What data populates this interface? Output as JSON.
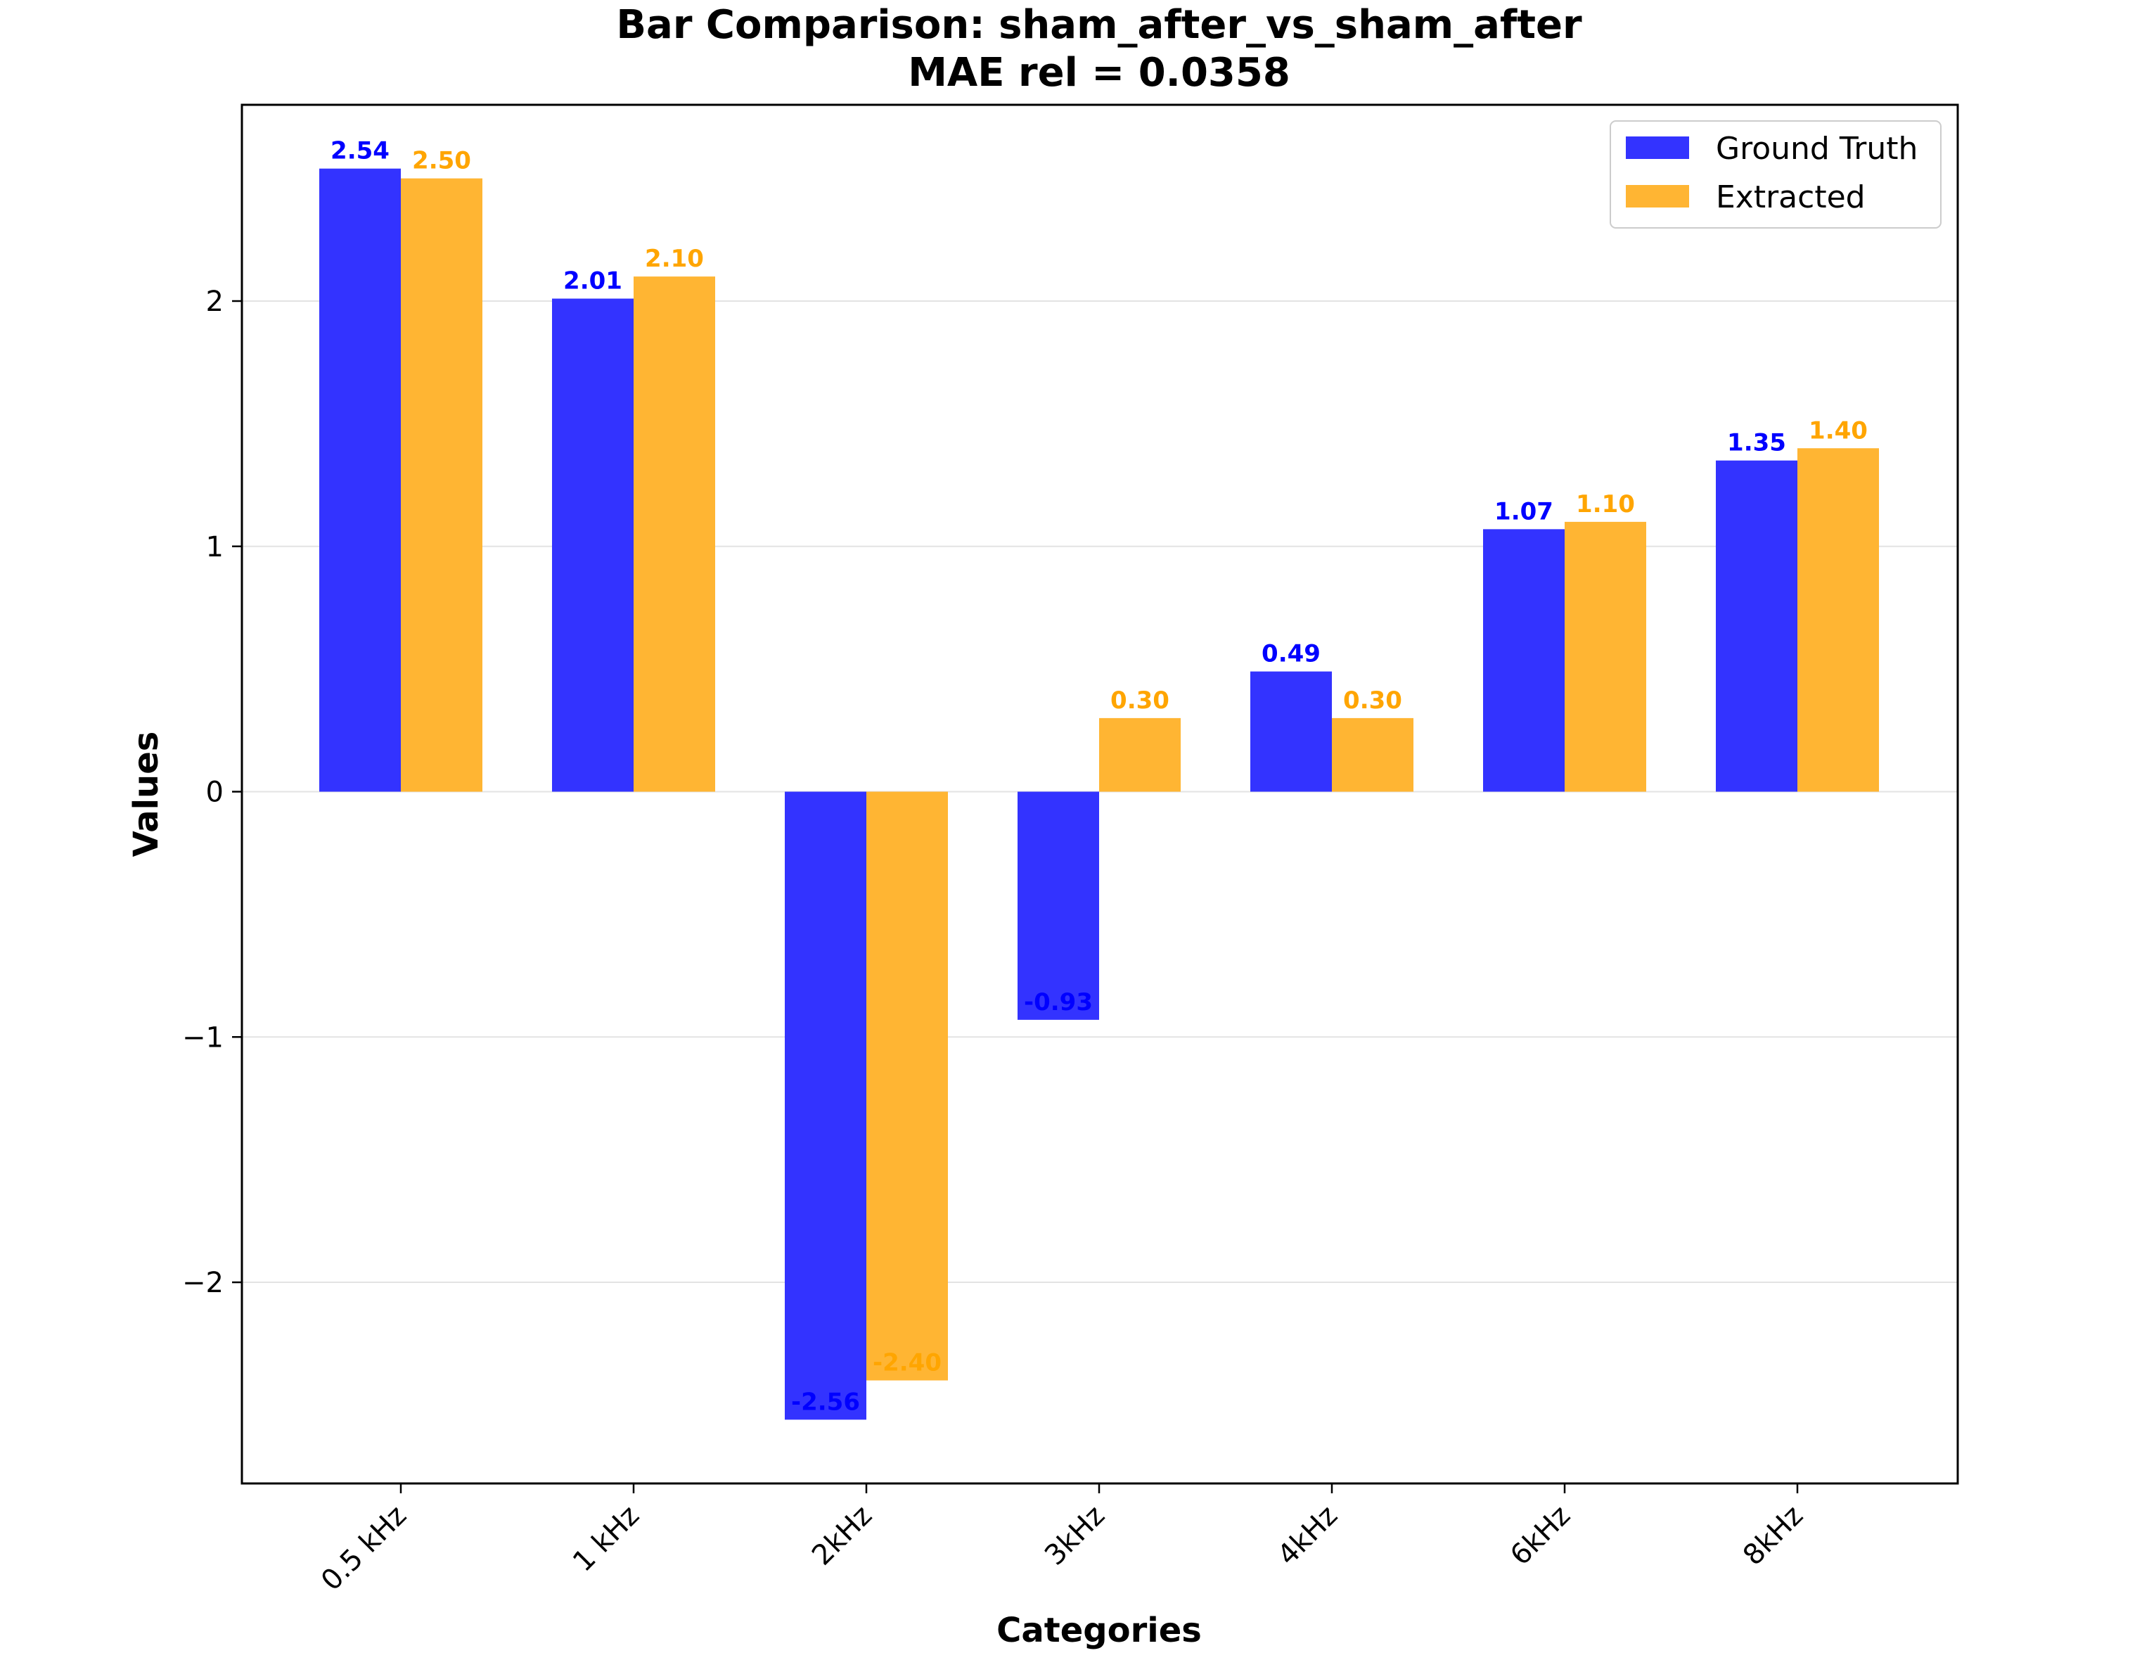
{
  "chart_data": {
    "type": "bar",
    "title": "Bar Comparison: sham_after_vs_sham_after",
    "subtitle": "MAE rel = 0.0358",
    "xlabel": "Categories",
    "ylabel": "Values",
    "categories": [
      "0.5 kHz",
      "1 kHz",
      "2kHz",
      "3kHz",
      "4kHz",
      "6kHz",
      "8kHz"
    ],
    "series": [
      {
        "name": "Ground Truth",
        "color": "#0000ff",
        "values": [
          2.54,
          2.01,
          -2.56,
          -0.93,
          0.49,
          1.07,
          1.35
        ],
        "labels": [
          "2.54",
          "2.01",
          "-2.56",
          "-0.93",
          "0.49",
          "1.07",
          "1.35"
        ]
      },
      {
        "name": "Extracted",
        "color": "#ffa500",
        "values": [
          2.5,
          2.1,
          -2.4,
          0.3,
          0.3,
          1.1,
          1.4
        ],
        "labels": [
          "2.50",
          "2.10",
          "-2.40",
          "0.30",
          "0.30",
          "1.10",
          "1.40"
        ]
      }
    ],
    "yticks": [
      -2,
      -1,
      0,
      1,
      2
    ],
    "ytick_labels": [
      "−2",
      "−1",
      "0",
      "1",
      "2"
    ],
    "ylim": [
      -2.82,
      2.8
    ],
    "grid": true,
    "legend_position": "top-right"
  }
}
